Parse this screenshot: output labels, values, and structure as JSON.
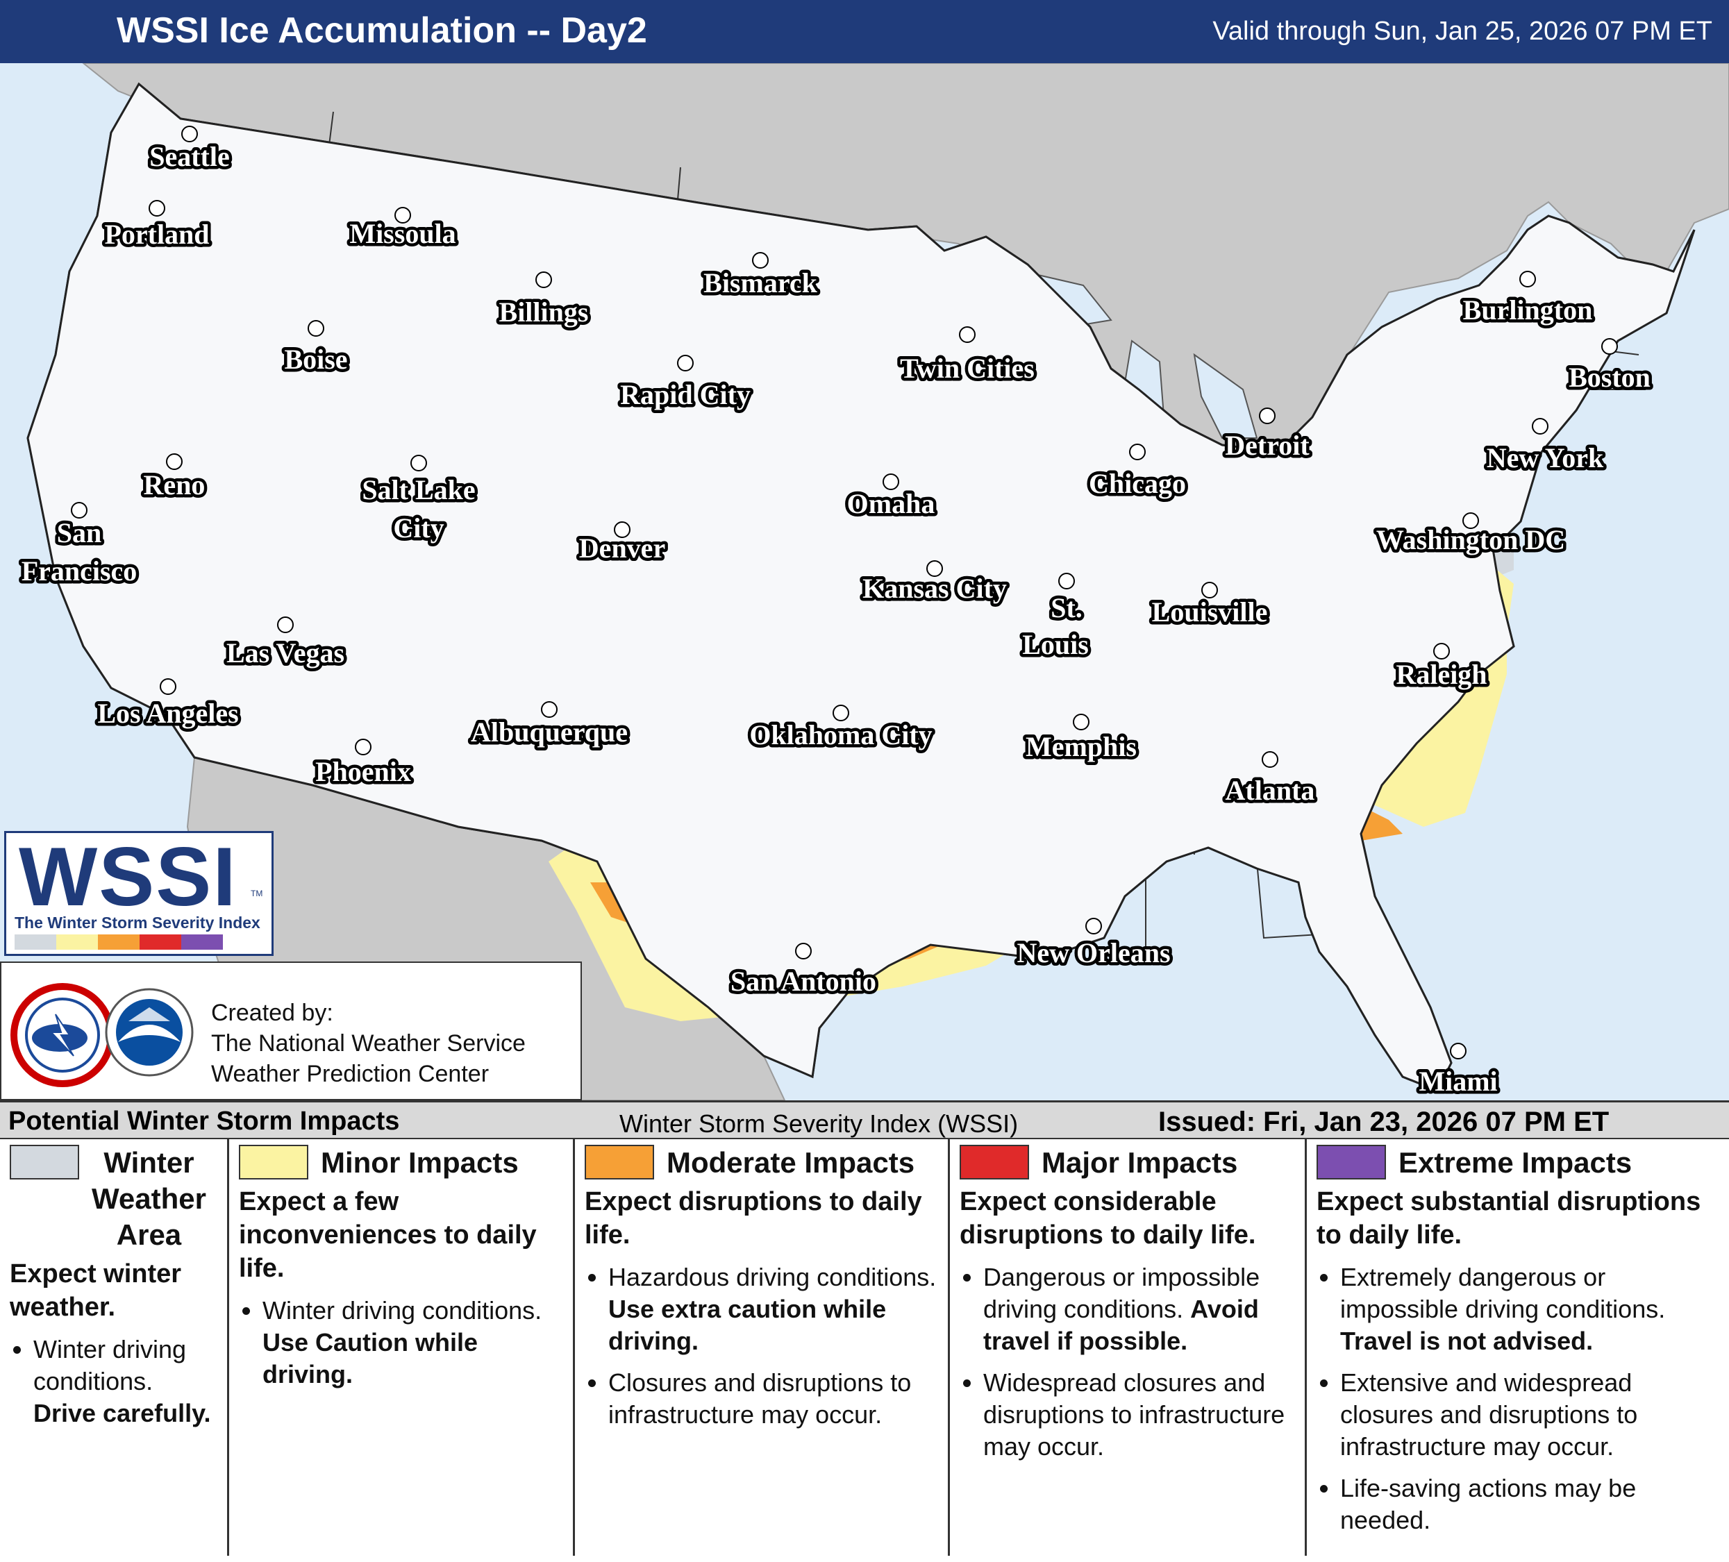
{
  "header": {
    "title": "WSSI Ice Accumulation -- Day2",
    "valid": "Valid through Sun, Jan 25, 2026 07 PM ET"
  },
  "colors": {
    "header_bg": "#1f3b7a",
    "ocean": "#dcebf8",
    "foreign_land": "#c9c9c9",
    "us_land": "#f7f8fa",
    "winter_weather_area": "#d3d9df",
    "minor": "#fbf3a2",
    "moderate": "#f6a036",
    "major": "#e02a2a",
    "extreme": "#7c4fb0"
  },
  "cities": [
    {
      "name": "Seattle"
    },
    {
      "name": "Portland"
    },
    {
      "name": "Missoula"
    },
    {
      "name": "Billings"
    },
    {
      "name": "Bismarck"
    },
    {
      "name": "Boise"
    },
    {
      "name": "Rapid City"
    },
    {
      "name": "Twin Cities"
    },
    {
      "name": "Burlington"
    },
    {
      "name": "Boston"
    },
    {
      "name": "Detroit"
    },
    {
      "name": "New York"
    },
    {
      "name": "Chicago"
    },
    {
      "name": "Reno"
    },
    {
      "name": "Salt Lake"
    },
    {
      "name": "City"
    },
    {
      "name": "Omaha"
    },
    {
      "name": "San"
    },
    {
      "name": "Francisco"
    },
    {
      "name": "Denver"
    },
    {
      "name": "Washington DC"
    },
    {
      "name": "Kansas City"
    },
    {
      "name": "St."
    },
    {
      "name": "Louis"
    },
    {
      "name": "Louisville"
    },
    {
      "name": "Las Vegas"
    },
    {
      "name": "Raleigh"
    },
    {
      "name": "Los Angeles"
    },
    {
      "name": "Memphis"
    },
    {
      "name": "Albuquerque"
    },
    {
      "name": "Oklahoma City"
    },
    {
      "name": "Phoenix"
    },
    {
      "name": "Atlanta"
    },
    {
      "name": "New Orleans"
    },
    {
      "name": "San Antonio"
    },
    {
      "name": "Miami"
    }
  ],
  "logo": {
    "wordmark": "WSSI",
    "tagline": "The Winter Storm Severity Index",
    "tm": "TM"
  },
  "credit": {
    "line1": "Created by:",
    "line2": "The National Weather Service",
    "line3": "Weather Prediction Center"
  },
  "bottom_bar": {
    "left": "Potential Winter Storm Impacts",
    "center": "Winter Storm Severity Index (WSSI)",
    "right": "Issued: Fri, Jan 23, 2026 07 PM ET"
  },
  "legend": [
    {
      "name_lines": [
        "Winter",
        "Weather",
        "Area"
      ],
      "lead": "Expect winter weather.",
      "bullets": [
        {
          "text": "Winter driving conditions. ",
          "bold": "Drive carefully."
        }
      ]
    },
    {
      "name": "Minor Impacts",
      "lead": "Expect a few inconveniences to daily life.",
      "bullets": [
        {
          "text": "Winter driving conditions. ",
          "bold": "Use Caution while driving."
        }
      ]
    },
    {
      "name": "Moderate Impacts",
      "lead": "Expect disruptions to daily life.",
      "bullets": [
        {
          "text": "Hazardous driving conditions. ",
          "bold": "Use extra caution while driving."
        },
        {
          "text": "Closures and disruptions to infrastructure may occur.",
          "bold": ""
        }
      ]
    },
    {
      "name": "Major Impacts",
      "lead": "Expect considerable disruptions to daily life.",
      "bullets": [
        {
          "text": "Dangerous or impossible driving conditions. ",
          "bold": "Avoid travel if possible."
        },
        {
          "text": "Widespread closures and disruptions to infrastructure may occur.",
          "bold": ""
        }
      ]
    },
    {
      "name": "Extreme Impacts",
      "lead": "Expect substantial disruptions to daily life.",
      "bullets": [
        {
          "text": "Extremely dangerous or impossible driving conditions. ",
          "bold": "Travel is not advised."
        },
        {
          "text": "Extensive and widespread closures and disruptions to infrastructure may occur.",
          "bold": ""
        },
        {
          "text": "Life-saving actions may be needed.",
          "bold": ""
        }
      ]
    }
  ]
}
